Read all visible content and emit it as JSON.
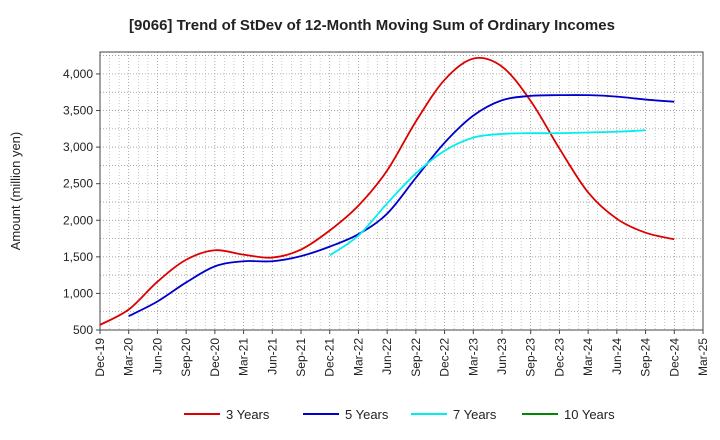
{
  "chart_data": {
    "type": "line",
    "title": "[9066]  Trend of StDev of 12-Month Moving Sum of Ordinary Incomes",
    "ylabel": "Amount (million yen)",
    "xlabel": "",
    "ylim": [
      500,
      4300
    ],
    "yticks": [
      500,
      1000,
      1500,
      2000,
      2500,
      3000,
      3500,
      4000
    ],
    "ytick_labels": [
      "500",
      "1,000",
      "1,500",
      "2,000",
      "2,500",
      "3,000",
      "3,500",
      "4,000"
    ],
    "x_labels": [
      "Dec-19",
      "Mar-20",
      "Jun-20",
      "Sep-20",
      "Dec-20",
      "Mar-21",
      "Jun-21",
      "Sep-21",
      "Dec-21",
      "Mar-22",
      "Jun-22",
      "Sep-22",
      "Dec-22",
      "Mar-23",
      "Jun-23",
      "Sep-23",
      "Dec-23",
      "Mar-24",
      "Jun-24",
      "Sep-24",
      "Dec-24",
      "Mar-25"
    ],
    "grid": true,
    "legend_position": "bottom",
    "series": [
      {
        "name": "3 Years",
        "color": "#dd0000",
        "start_index": 0,
        "values": [
          570,
          780,
          1160,
          1460,
          1590,
          1530,
          1490,
          1600,
          1860,
          2200,
          2680,
          3350,
          3920,
          4210,
          4100,
          3630,
          2980,
          2380,
          2020,
          1830,
          1740
        ]
      },
      {
        "name": "5 Years",
        "color": "#0000cc",
        "start_index": 1,
        "values": [
          690,
          890,
          1150,
          1370,
          1440,
          1440,
          1510,
          1640,
          1810,
          2090,
          2580,
          3060,
          3430,
          3640,
          3700,
          3710,
          3710,
          3690,
          3650,
          3620
        ]
      },
      {
        "name": "7 Years",
        "color": "#00eeee",
        "start_index": 8,
        "values": [
          1520,
          1790,
          2230,
          2640,
          2950,
          3130,
          3180,
          3190,
          3190,
          3200,
          3210,
          3230
        ]
      },
      {
        "name": "10 Years",
        "color": "#008800",
        "start_index": 0,
        "values": []
      }
    ]
  }
}
